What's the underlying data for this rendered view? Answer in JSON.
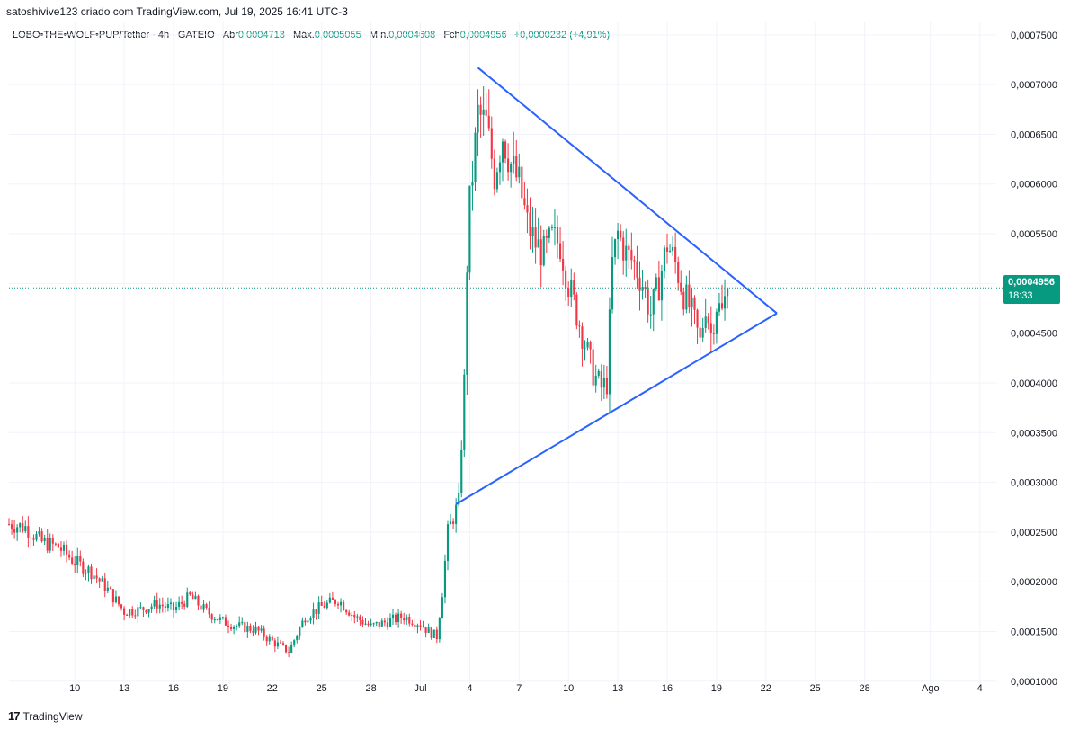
{
  "header": {
    "attribution": "satoshivive123 criado com TradingView.com, Jul 19, 2025 16:41 UTC-3"
  },
  "legend": {
    "symbol": "LOBO•THE•WOLF•PUP/Tether · 4h · GATEIO",
    "open_label": "Abr",
    "open": "0,0004713",
    "high_label": "Máx.",
    "high": "0,0005055",
    "low_label": "Mín.",
    "low": "0,0004608",
    "close_label": "Fch",
    "close": "0,0004956",
    "change": "+0,0000232 (+4,91%)"
  },
  "price_label": {
    "price": "0,0004956",
    "countdown": "18:33"
  },
  "brand": {
    "logo": "17",
    "name": "TradingView"
  },
  "colors": {
    "up": "#089981",
    "down": "#f23645",
    "trendline": "#2962ff",
    "grid": "#f0f3fa",
    "axis_text": "#131722"
  },
  "chart_data": {
    "type": "candlestick",
    "interval": "4h",
    "current_price": 0.0004956,
    "x_range": [
      "2025-06-06",
      "2025-08-05"
    ],
    "ylim": [
      9.35e-05,
      0.0007625
    ],
    "grid": true,
    "y_ticks": [
      {
        "v": 0.00075,
        "label": "0,0007500"
      },
      {
        "v": 0.0007,
        "label": "0,0007000"
      },
      {
        "v": 0.00065,
        "label": "0,0006500"
      },
      {
        "v": 0.0006,
        "label": "0,0006000"
      },
      {
        "v": 0.00055,
        "label": "0,0005500"
      },
      {
        "v": 0.0005,
        "label": "0,0005000"
      },
      {
        "v": 0.00045,
        "label": "0,0004500"
      },
      {
        "v": 0.0004,
        "label": "0,0004000"
      },
      {
        "v": 0.00035,
        "label": "0,0003500"
      },
      {
        "v": 0.0003,
        "label": "0,0003000"
      },
      {
        "v": 0.00025,
        "label": "0,0002500"
      },
      {
        "v": 0.0002,
        "label": "0,0002000"
      },
      {
        "v": 0.00015,
        "label": "0,0001500"
      },
      {
        "v": 0.0001,
        "label": "0,0001000"
      }
    ],
    "x_ticks": [
      {
        "date": "2025-06-10",
        "label": "10"
      },
      {
        "date": "2025-06-13",
        "label": "13"
      },
      {
        "date": "2025-06-16",
        "label": "16"
      },
      {
        "date": "2025-06-19",
        "label": "19"
      },
      {
        "date": "2025-06-22",
        "label": "22"
      },
      {
        "date": "2025-06-25",
        "label": "25"
      },
      {
        "date": "2025-06-28",
        "label": "28"
      },
      {
        "date": "2025-07-01",
        "label": "Jul"
      },
      {
        "date": "2025-07-04",
        "label": "4"
      },
      {
        "date": "2025-07-07",
        "label": "7"
      },
      {
        "date": "2025-07-10",
        "label": "10"
      },
      {
        "date": "2025-07-13",
        "label": "13"
      },
      {
        "date": "2025-07-16",
        "label": "16"
      },
      {
        "date": "2025-07-19",
        "label": "19"
      },
      {
        "date": "2025-07-22",
        "label": "22"
      },
      {
        "date": "2025-07-25",
        "label": "25"
      },
      {
        "date": "2025-07-28",
        "label": "28"
      },
      {
        "date": "2025-08-01",
        "label": "Ago"
      },
      {
        "date": "2025-08-04",
        "label": "4"
      }
    ],
    "trendlines": [
      {
        "name": "upper",
        "from": {
          "date": "2025-07-04 12:00",
          "price": 0.000717
        },
        "to": {
          "date": "2025-07-22 16:00",
          "price": 0.00047
        }
      },
      {
        "name": "lower",
        "from": {
          "date": "2025-07-03 04:00",
          "price": 0.000278
        },
        "to": {
          "date": "2025-07-22 16:00",
          "price": 0.00047
        }
      }
    ],
    "close_path": [
      [
        "2025-06-06 00:00",
        0.000258
      ],
      [
        "2025-06-07 00:00",
        0.000255
      ],
      [
        "2025-06-08 00:00",
        0.00024
      ],
      [
        "2025-06-09 00:00",
        0.000235
      ],
      [
        "2025-06-10 00:00",
        0.00022
      ],
      [
        "2025-06-11 00:00",
        0.00021
      ],
      [
        "2025-06-12 00:00",
        0.000192
      ],
      [
        "2025-06-13 00:00",
        0.00017
      ],
      [
        "2025-06-14 00:00",
        0.000172
      ],
      [
        "2025-06-15 00:00",
        0.000178
      ],
      [
        "2025-06-16 00:00",
        0.000172
      ],
      [
        "2025-06-17 00:00",
        0.000185
      ],
      [
        "2025-06-18 00:00",
        0.00017
      ],
      [
        "2025-06-19 00:00",
        0.00016
      ],
      [
        "2025-06-20 00:00",
        0.000155
      ],
      [
        "2025-06-21 00:00",
        0.000152
      ],
      [
        "2025-06-22 00:00",
        0.00014
      ],
      [
        "2025-06-23 00:00",
        0.00013
      ],
      [
        "2025-06-24 00:00",
        0.000165
      ],
      [
        "2025-06-25 00:00",
        0.000175
      ],
      [
        "2025-06-26 00:00",
        0.000182
      ],
      [
        "2025-06-27 00:00",
        0.000165
      ],
      [
        "2025-06-28 00:00",
        0.000155
      ],
      [
        "2025-06-29 00:00",
        0.00016
      ],
      [
        "2025-06-30 00:00",
        0.000165
      ],
      [
        "2025-07-01 00:00",
        0.000158
      ],
      [
        "2025-07-01 12:00",
        0.00015
      ],
      [
        "2025-07-02 00:00",
        0.000145
      ],
      [
        "2025-07-02 08:00",
        0.00019
      ],
      [
        "2025-07-02 16:00",
        0.00025
      ],
      [
        "2025-07-03 00:00",
        0.000265
      ],
      [
        "2025-07-03 08:00",
        0.00028
      ],
      [
        "2025-07-03 16:00",
        0.0004
      ],
      [
        "2025-07-03 20:00",
        0.00052
      ],
      [
        "2025-07-04 00:00",
        0.00058
      ],
      [
        "2025-07-04 12:00",
        0.00067
      ],
      [
        "2025-07-05 00:00",
        0.00066
      ],
      [
        "2025-07-05 12:00",
        0.00061
      ],
      [
        "2025-07-06 00:00",
        0.00065
      ],
      [
        "2025-07-06 12:00",
        0.00062
      ],
      [
        "2025-07-07 00:00",
        0.0006
      ],
      [
        "2025-07-07 12:00",
        0.00056
      ],
      [
        "2025-07-08 00:00",
        0.00054
      ],
      [
        "2025-07-08 12:00",
        0.00053
      ],
      [
        "2025-07-09 00:00",
        0.000545
      ],
      [
        "2025-07-09 12:00",
        0.00054
      ],
      [
        "2025-07-10 00:00",
        0.0005
      ],
      [
        "2025-07-10 12:00",
        0.00047
      ],
      [
        "2025-07-11 00:00",
        0.00044
      ],
      [
        "2025-07-11 12:00",
        0.00041
      ],
      [
        "2025-07-12 00:00",
        0.000395
      ],
      [
        "2025-07-12 08:00",
        0.0004
      ],
      [
        "2025-07-12 16:00",
        0.00052
      ],
      [
        "2025-07-13 00:00",
        0.00055
      ],
      [
        "2025-07-13 12:00",
        0.00053
      ],
      [
        "2025-07-14 00:00",
        0.00052
      ],
      [
        "2025-07-14 12:00",
        0.0005
      ],
      [
        "2025-07-15 00:00",
        0.00047
      ],
      [
        "2025-07-15 12:00",
        0.0005
      ],
      [
        "2025-07-16 00:00",
        0.00054
      ],
      [
        "2025-07-16 12:00",
        0.00052
      ],
      [
        "2025-07-17 00:00",
        0.00049
      ],
      [
        "2025-07-17 12:00",
        0.00047
      ],
      [
        "2025-07-18 00:00",
        0.00044
      ],
      [
        "2025-07-18 08:00",
        0.00048
      ],
      [
        "2025-07-18 16:00",
        0.00045
      ],
      [
        "2025-07-19 00:00",
        0.00048
      ],
      [
        "2025-07-19 08:00",
        0.00047
      ],
      [
        "2025-07-19 16:00",
        0.000496
      ]
    ]
  }
}
